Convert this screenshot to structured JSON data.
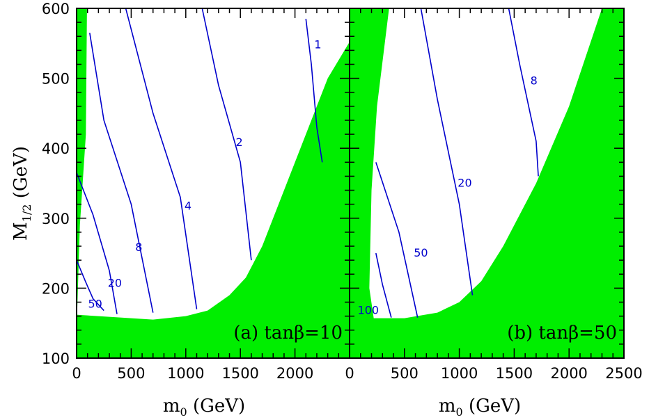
{
  "colors": {
    "excluded_region": "#00ee00",
    "contour": "#0000cc",
    "frame": "#000000"
  },
  "x_axis_title": {
    "main": "m",
    "sub": "0",
    "unit": "(GeV)"
  },
  "y_axis_title": {
    "main": "M",
    "sub": "1/2",
    "unit": "(GeV)"
  },
  "chart_data": [
    {
      "type": "contour",
      "panel_label": "(a) tanβ=10",
      "xlim": [
        0,
        2500
      ],
      "ylim": [
        100,
        600
      ],
      "x_ticks": [
        "0",
        "500",
        "1000",
        "1500",
        "2000"
      ],
      "y_ticks": [
        "100",
        "200",
        "300",
        "400",
        "500",
        "600"
      ],
      "excluded_regions": [
        {
          "name": "left-strip",
          "points": [
            [
              0,
              140
            ],
            [
              0,
              600
            ],
            [
              95,
              600
            ],
            [
              85,
              420
            ],
            [
              30,
              290
            ]
          ]
        },
        {
          "name": "bottom-right",
          "points": [
            [
              0,
              100
            ],
            [
              0,
              162
            ],
            [
              400,
              158
            ],
            [
              700,
              155
            ],
            [
              1000,
              160
            ],
            [
              1200,
              168
            ],
            [
              1400,
              190
            ],
            [
              1550,
              215
            ],
            [
              1700,
              260
            ],
            [
              2300,
              500
            ],
            [
              2500,
              552
            ],
            [
              2500,
              100
            ]
          ]
        }
      ],
      "contours": [
        {
          "label": "50",
          "points": [
            [
              0,
              240
            ],
            [
              80,
              210
            ],
            [
              150,
              185
            ],
            [
              250,
              168
            ]
          ],
          "label_at": [
            170,
            177
          ]
        },
        {
          "label": "20",
          "points": [
            [
              0,
              365
            ],
            [
              150,
              305
            ],
            [
              300,
              225
            ],
            [
              370,
              163
            ]
          ],
          "label_at": [
            350,
            207
          ]
        },
        {
          "label": "8",
          "points": [
            [
              120,
              565
            ],
            [
              250,
              440
            ],
            [
              500,
              320
            ],
            [
              700,
              165
            ]
          ],
          "label_at": [
            570,
            258
          ]
        },
        {
          "label": "4",
          "points": [
            [
              450,
              600
            ],
            [
              700,
              450
            ],
            [
              950,
              330
            ],
            [
              1100,
              170
            ]
          ],
          "label_at": [
            1020,
            317
          ]
        },
        {
          "label": "2",
          "points": [
            [
              1150,
              600
            ],
            [
              1300,
              490
            ],
            [
              1500,
              380
            ],
            [
              1600,
              240
            ]
          ],
          "label_at": [
            1490,
            408
          ]
        },
        {
          "label": "1",
          "points": [
            [
              2100,
              585
            ],
            [
              2150,
              520
            ],
            [
              2200,
              430
            ],
            [
              2250,
              380
            ]
          ],
          "label_at": [
            2210,
            548
          ]
        }
      ]
    },
    {
      "type": "contour",
      "panel_label": "(b) tanβ=50",
      "xlim": [
        0,
        2500
      ],
      "ylim": [
        100,
        600
      ],
      "x_ticks": [
        "0",
        "500",
        "1000",
        "1500",
        "2000",
        "2500"
      ],
      "y_ticks": [
        "100",
        "200",
        "300",
        "400",
        "500",
        "600"
      ],
      "excluded_regions": [
        {
          "name": "left-wedge",
          "points": [
            [
              0,
              100
            ],
            [
              0,
              600
            ],
            [
              360,
              600
            ],
            [
              250,
              460
            ],
            [
              200,
              340
            ],
            [
              180,
              200
            ],
            [
              220,
              157
            ],
            [
              500,
              157
            ],
            [
              800,
              165
            ],
            [
              1000,
              180
            ],
            [
              1200,
              210
            ],
            [
              1400,
              260
            ],
            [
              1700,
              350
            ],
            [
              2000,
              460
            ],
            [
              2300,
              600
            ],
            [
              2500,
              600
            ],
            [
              2500,
              100
            ]
          ]
        }
      ],
      "contours": [
        {
          "label": "100",
          "points": [
            [
              240,
              250
            ],
            [
              300,
              205
            ],
            [
              380,
              158
            ]
          ],
          "label_at": [
            170,
            168
          ]
        },
        {
          "label": "50",
          "points": [
            [
              240,
              380
            ],
            [
              450,
              280
            ],
            [
              620,
              158
            ]
          ],
          "label_at": [
            650,
            250
          ]
        },
        {
          "label": "20",
          "points": [
            [
              650,
              600
            ],
            [
              800,
              470
            ],
            [
              1000,
              320
            ],
            [
              1120,
              190
            ]
          ],
          "label_at": [
            1050,
            350
          ]
        },
        {
          "label": "8",
          "points": [
            [
              1450,
              600
            ],
            [
              1550,
              520
            ],
            [
              1700,
              410
            ],
            [
              1720,
              360
            ]
          ],
          "label_at": [
            1680,
            496
          ]
        }
      ]
    }
  ]
}
